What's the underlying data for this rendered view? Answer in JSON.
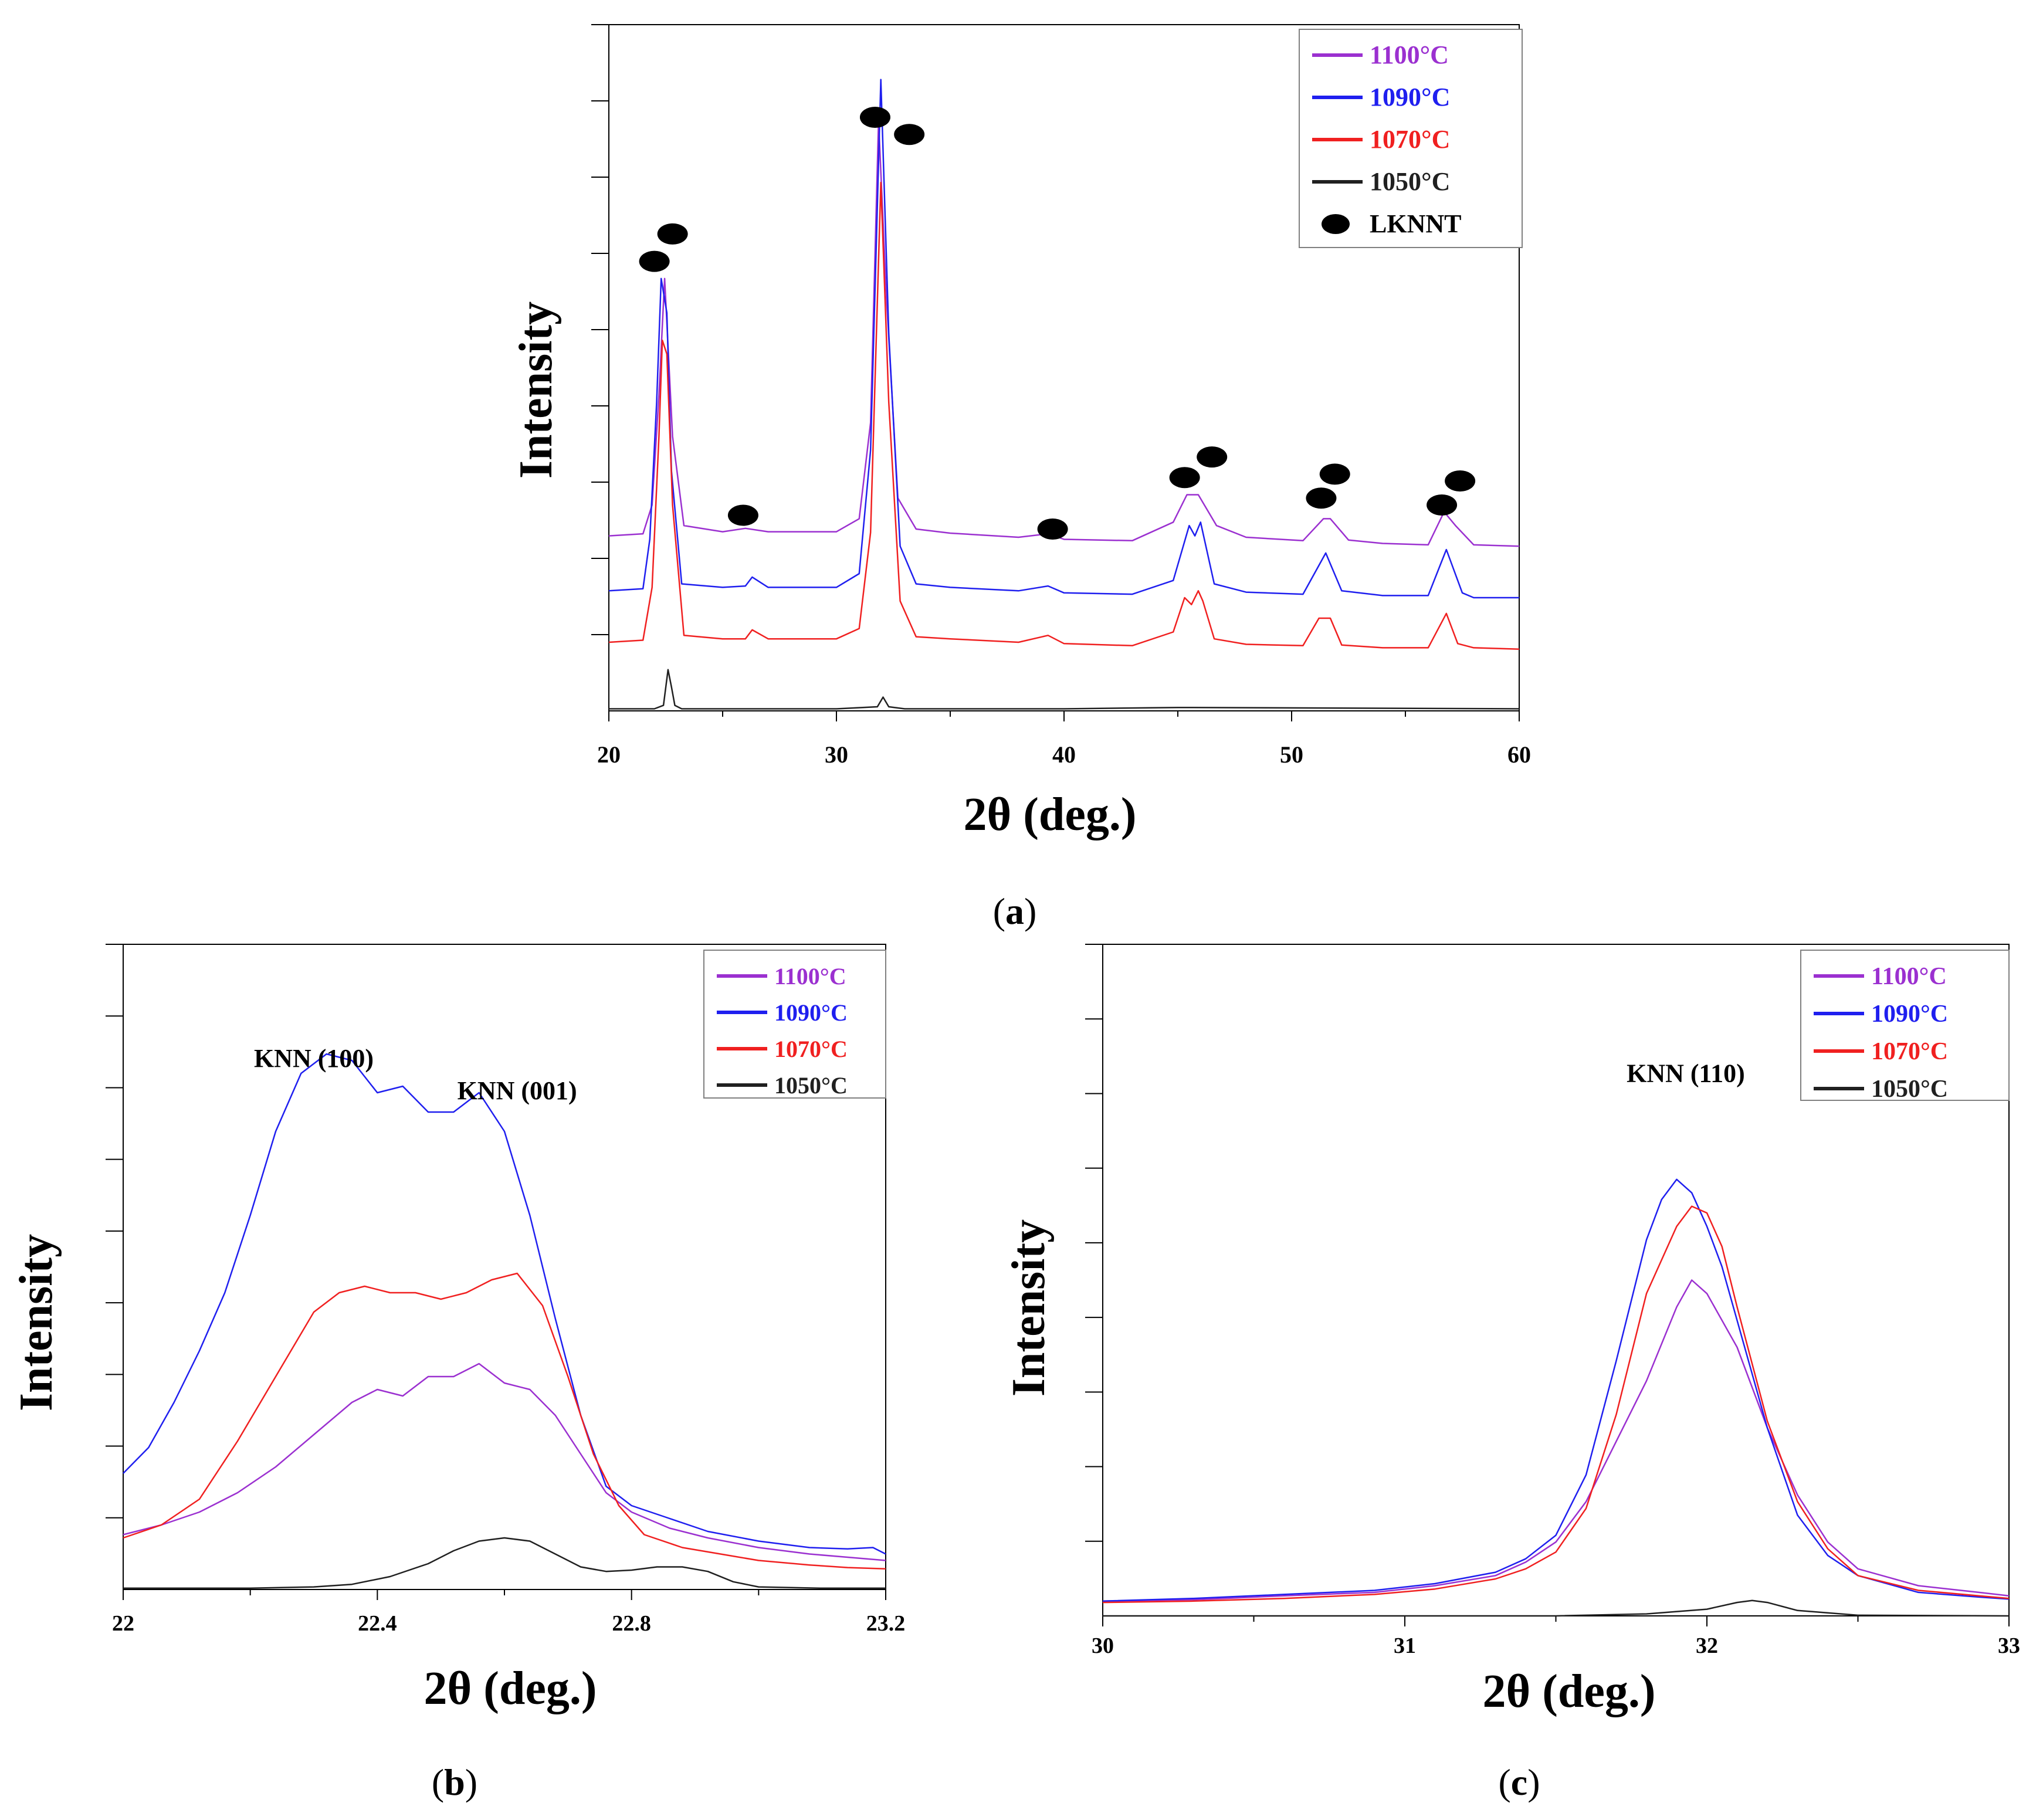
{
  "colors": {
    "c1100": "#9B30D0",
    "c1090": "#1F1FEF",
    "c1070": "#F02020",
    "c1050": "#202020",
    "marker": "#000000",
    "frame": "#000000"
  },
  "chart_data": [
    {
      "type": "line",
      "panel_label": "a",
      "title": "",
      "xlabel": "2θ (deg.)",
      "ylabel": "Intensity",
      "xlim": [
        20,
        60
      ],
      "ylim": [
        0,
        100
      ],
      "xticks": [
        "20",
        "30",
        "40",
        "50",
        "60"
      ],
      "y_tick_labels_shown": false,
      "legend": {
        "placement": "top-right",
        "entries": [
          {
            "label": "1100°C",
            "series": "1100"
          },
          {
            "label": "1090°C",
            "series": "1090"
          },
          {
            "label": "1070°C",
            "series": "1070"
          },
          {
            "label": "1050°C",
            "series": "1050"
          },
          {
            "label": "LKNNT",
            "marker": "ellipse"
          }
        ]
      },
      "series": [
        {
          "name": "1100°C",
          "color_key": "c1100",
          "x": [
            20,
            21.5,
            21.9,
            22.2,
            22.45,
            22.8,
            23.3,
            25,
            26,
            27,
            30,
            31,
            31.5,
            31.85,
            32.2,
            32.7,
            33.5,
            35,
            38,
            39.3,
            40,
            43,
            44.8,
            45.4,
            45.9,
            46.7,
            48,
            50.5,
            51.4,
            51.7,
            52.5,
            54,
            56,
            56.7,
            57.2,
            58,
            60
          ],
          "y": [
            25.5,
            25.8,
            30,
            46,
            63,
            40,
            27,
            26.1,
            26.6,
            26.1,
            26.1,
            28,
            42,
            86,
            60,
            31,
            26.5,
            25.9,
            25.3,
            25.8,
            25,
            24.8,
            27.5,
            31.5,
            31.5,
            27,
            25.3,
            24.8,
            28,
            28,
            24.9,
            24.4,
            24.2,
            29,
            27,
            24.2,
            24
          ]
        },
        {
          "name": "1090°C",
          "color_key": "c1090",
          "x": [
            20,
            21.5,
            21.8,
            22.1,
            22.3,
            22.55,
            22.75,
            23.2,
            25,
            26,
            26.3,
            27,
            30,
            31,
            31.5,
            31.95,
            32.3,
            32.8,
            33.5,
            35,
            38,
            39.3,
            40,
            43,
            44.8,
            45.5,
            45.75,
            46,
            46.6,
            48,
            50.5,
            51.5,
            52.2,
            54,
            56,
            56.8,
            57.5,
            58,
            60
          ],
          "y": [
            17.5,
            17.8,
            25,
            45,
            63,
            58,
            35,
            18.5,
            18,
            18.2,
            19.5,
            18,
            18,
            20,
            38,
            92,
            55,
            24,
            18.5,
            18,
            17.5,
            18.2,
            17.2,
            17,
            19,
            27,
            25.5,
            27.5,
            18.5,
            17.3,
            17,
            23,
            17.5,
            16.8,
            16.8,
            23.5,
            17.2,
            16.5,
            16.5
          ]
        },
        {
          "name": "1070°C",
          "color_key": "c1070",
          "x": [
            20,
            21.5,
            21.9,
            22.2,
            22.35,
            22.55,
            22.8,
            23.3,
            25,
            26,
            26.3,
            27,
            30,
            31,
            31.5,
            31.95,
            32.3,
            32.8,
            33.5,
            35,
            38,
            39.3,
            40,
            43,
            44.8,
            45.3,
            45.6,
            45.9,
            46.1,
            46.6,
            48,
            50.5,
            51.2,
            51.7,
            52.2,
            54,
            56,
            56.8,
            57.3,
            58,
            60
          ],
          "y": [
            10,
            10.3,
            18,
            40,
            54,
            52,
            30,
            11,
            10.5,
            10.5,
            11.8,
            10.5,
            10.5,
            12,
            26,
            77,
            45,
            16,
            10.8,
            10.5,
            10,
            11,
            9.8,
            9.5,
            11.5,
            16.5,
            15.5,
            17.5,
            16,
            10.5,
            9.7,
            9.5,
            13.5,
            13.5,
            9.6,
            9.2,
            9.2,
            14.2,
            9.8,
            9.2,
            9
          ]
        },
        {
          "name": "1050°C",
          "color_key": "c1050",
          "x": [
            20,
            22,
            22.4,
            22.6,
            22.75,
            22.9,
            23.2,
            25,
            30,
            31.8,
            32.05,
            32.3,
            33,
            40,
            45,
            60
          ],
          "y": [
            0.3,
            0.3,
            0.8,
            6,
            3.5,
            0.8,
            0.3,
            0.3,
            0.3,
            0.6,
            2,
            0.6,
            0.3,
            0.3,
            0.5,
            0.3
          ]
        }
      ],
      "markers": [
        {
          "x": 22.0,
          "y": 65.5
        },
        {
          "x": 22.8,
          "y": 69.5
        },
        {
          "x": 25.9,
          "y": 28.5
        },
        {
          "x": 31.7,
          "y": 86.5
        },
        {
          "x": 33.2,
          "y": 84.0
        },
        {
          "x": 39.5,
          "y": 26.5
        },
        {
          "x": 45.3,
          "y": 34.0
        },
        {
          "x": 46.5,
          "y": 37.0
        },
        {
          "x": 51.3,
          "y": 31.0
        },
        {
          "x": 51.9,
          "y": 34.5
        },
        {
          "x": 56.6,
          "y": 30.0
        },
        {
          "x": 57.4,
          "y": 33.5
        }
      ]
    },
    {
      "type": "line",
      "panel_label": "b",
      "title": "",
      "xlabel": "2θ (deg.)",
      "ylabel": "Intensity",
      "xlim": [
        22,
        23.2
      ],
      "ylim": [
        0,
        100
      ],
      "xticks": [
        "22",
        "22.4",
        "22.8",
        "23.2"
      ],
      "y_tick_labels_shown": false,
      "legend": {
        "placement": "top-right",
        "entries": [
          {
            "label": "1100°C",
            "series": "1100"
          },
          {
            "label": "1090°C",
            "series": "1090"
          },
          {
            "label": "1070°C",
            "series": "1070"
          },
          {
            "label": "1050°C",
            "series": "1050"
          }
        ]
      },
      "annotations": [
        {
          "text": "KNN (100)",
          "x": 22.3,
          "y": 81
        },
        {
          "text": "KNN (001)",
          "x": 22.62,
          "y": 76
        }
      ],
      "series": [
        {
          "name": "1100°C",
          "color_key": "c1100",
          "x": [
            22,
            22.06,
            22.12,
            22.18,
            22.24,
            22.3,
            22.36,
            22.4,
            22.44,
            22.48,
            22.52,
            22.56,
            22.6,
            22.64,
            22.68,
            22.72,
            22.76,
            22.8,
            22.86,
            22.92,
            23,
            23.08,
            23.14,
            23.2
          ],
          "y": [
            8.5,
            10,
            12,
            15,
            19,
            24,
            29,
            31,
            30,
            33,
            33,
            35,
            32,
            31,
            27,
            21,
            15,
            12,
            9.5,
            8,
            6.5,
            5.5,
            5,
            4.5
          ]
        },
        {
          "name": "1090°C",
          "color_key": "c1090",
          "x": [
            22,
            22.04,
            22.08,
            22.12,
            22.16,
            22.2,
            22.24,
            22.28,
            22.32,
            22.36,
            22.4,
            22.44,
            22.48,
            22.52,
            22.56,
            22.6,
            22.64,
            22.68,
            22.72,
            22.76,
            22.8,
            22.86,
            22.92,
            23,
            23.08,
            23.14,
            23.18,
            23.2
          ],
          "y": [
            18,
            22,
            29,
            37,
            46,
            58,
            71,
            80,
            83,
            82,
            77,
            78,
            74,
            74,
            77,
            71,
            58,
            42,
            27,
            16,
            13,
            11,
            9,
            7.5,
            6.5,
            6.3,
            6.5,
            5.5
          ]
        },
        {
          "name": "1070°C",
          "color_key": "c1070",
          "x": [
            22,
            22.06,
            22.12,
            22.18,
            22.24,
            22.3,
            22.34,
            22.38,
            22.42,
            22.46,
            22.5,
            22.54,
            22.58,
            22.62,
            22.66,
            22.7,
            22.74,
            22.78,
            22.82,
            22.88,
            22.94,
            23,
            23.08,
            23.14,
            23.2
          ],
          "y": [
            8,
            10,
            14,
            23,
            33,
            43,
            46,
            47,
            46,
            46,
            45,
            46,
            48,
            49,
            44,
            33,
            21,
            13,
            8.5,
            6.5,
            5.5,
            4.5,
            3.8,
            3.4,
            3.2
          ]
        },
        {
          "name": "1050°C",
          "color_key": "c1050",
          "x": [
            22,
            22.1,
            22.2,
            22.3,
            22.36,
            22.42,
            22.48,
            22.52,
            22.56,
            22.6,
            22.64,
            22.68,
            22.72,
            22.76,
            22.8,
            22.84,
            22.88,
            22.92,
            22.96,
            23,
            23.1,
            23.2
          ],
          "y": [
            0.2,
            0.2,
            0.2,
            0.4,
            0.8,
            2,
            4,
            6,
            7.5,
            8,
            7.5,
            5.5,
            3.5,
            2.8,
            3,
            3.5,
            3.5,
            2.8,
            1.2,
            0.4,
            0.2,
            0.2
          ]
        }
      ]
    },
    {
      "type": "line",
      "panel_label": "c",
      "title": "",
      "xlabel": "2θ (deg.)",
      "ylabel": "Intensity",
      "xlim": [
        30,
        33
      ],
      "ylim": [
        0,
        100
      ],
      "xticks": [
        "30",
        "31",
        "32",
        "33"
      ],
      "y_tick_labels_shown": false,
      "legend": {
        "placement": "top-right",
        "entries": [
          {
            "label": "1100°C",
            "series": "1100"
          },
          {
            "label": "1090°C",
            "series": "1090"
          },
          {
            "label": "1070°C",
            "series": "1070"
          },
          {
            "label": "1050°C",
            "series": "1050"
          }
        ]
      },
      "annotations": [
        {
          "text": "KNN (110)",
          "x": 31.93,
          "y": 79.5
        }
      ],
      "series": [
        {
          "name": "1100°C",
          "color_key": "c1100",
          "x": [
            30,
            30.3,
            30.6,
            30.9,
            31.1,
            31.3,
            31.4,
            31.5,
            31.6,
            31.7,
            31.8,
            31.9,
            31.95,
            32,
            32.1,
            32.2,
            32.3,
            32.4,
            32.5,
            32.7,
            32.9,
            33
          ],
          "y": [
            2.2,
            2.4,
            3,
            3.5,
            4.5,
            6,
            8,
            11,
            17,
            26,
            35,
            46,
            50,
            48,
            40,
            28,
            18,
            11,
            7,
            4.5,
            3.5,
            3
          ]
        },
        {
          "name": "1090°C",
          "color_key": "c1090",
          "x": [
            30,
            30.3,
            30.6,
            30.9,
            31.1,
            31.3,
            31.4,
            31.5,
            31.6,
            31.7,
            31.8,
            31.85,
            31.9,
            31.95,
            32,
            32.05,
            32.1,
            32.2,
            32.3,
            32.4,
            32.5,
            32.7,
            32.9,
            33
          ],
          "y": [
            2.2,
            2.6,
            3.2,
            3.8,
            4.8,
            6.5,
            8.5,
            12,
            21,
            38,
            56,
            62,
            65,
            63,
            58,
            52,
            44,
            28,
            15,
            9,
            6,
            3.5,
            2.8,
            2.5
          ]
        },
        {
          "name": "1070°C",
          "color_key": "c1070",
          "x": [
            30,
            30.3,
            30.6,
            30.9,
            31.1,
            31.3,
            31.4,
            31.5,
            31.6,
            31.7,
            31.8,
            31.9,
            31.95,
            32,
            32.05,
            32.1,
            32.2,
            32.3,
            32.4,
            32.5,
            32.7,
            32.9,
            33
          ],
          "y": [
            2,
            2.2,
            2.6,
            3.2,
            4,
            5.5,
            7,
            9.5,
            16,
            30,
            48,
            58,
            61,
            60,
            55,
            46,
            29,
            17,
            10,
            6,
            3.8,
            3,
            2.6
          ]
        },
        {
          "name": "1050°C",
          "color_key": "c1050",
          "x": [
            30,
            30.5,
            31,
            31.5,
            31.8,
            32,
            32.1,
            32.15,
            32.2,
            32.3,
            32.5,
            33
          ],
          "y": [
            0,
            0,
            0,
            0,
            0.3,
            1,
            2,
            2.3,
            2,
            0.8,
            0.1,
            0
          ]
        }
      ]
    }
  ]
}
